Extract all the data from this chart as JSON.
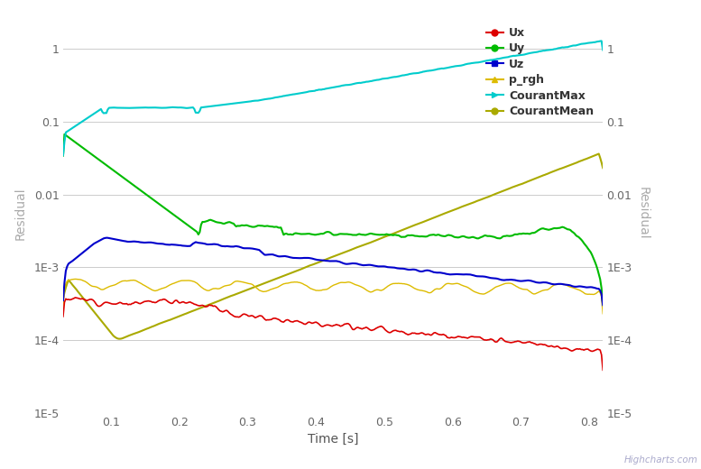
{
  "title": "",
  "xlabel": "Time [s]",
  "ylabel_left": "Residual",
  "ylabel_right": "Residual",
  "xlim": [
    0.03,
    0.82
  ],
  "ylim": [
    1e-05,
    3
  ],
  "background_color": "#ffffff",
  "grid_color": "#cccccc",
  "legend_labels": [
    "Ux",
    "Uy",
    "Uz",
    "p_rgh",
    "CourantMax",
    "CourantMean"
  ],
  "legend_colors": [
    "#dd0000",
    "#00bb00",
    "#0000cc",
    "#ddbb00",
    "#00cccc",
    "#aaaa00"
  ],
  "highcharts_text": "Highcharts.com",
  "yticks": [
    1e-05,
    0.0001,
    0.001,
    0.01,
    0.1,
    1
  ],
  "ylabels": [
    "1E-5",
    "1E-4",
    "1E-3",
    "0.01",
    "0.1",
    "1"
  ],
  "xticks": [
    0.1,
    0.2,
    0.3,
    0.4,
    0.5,
    0.6,
    0.7,
    0.8
  ]
}
